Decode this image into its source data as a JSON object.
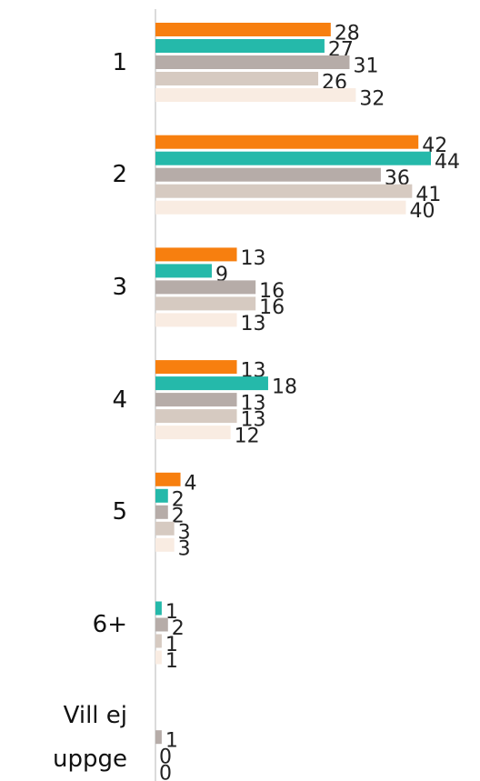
{
  "chart_data": {
    "type": "bar",
    "orientation": "horizontal",
    "categories": [
      "1",
      "2",
      "3",
      "4",
      "5",
      "6+",
      "Vill ej uppge"
    ],
    "series": [
      {
        "color": "#f77f0f",
        "values": [
          28,
          42,
          13,
          13,
          4,
          null,
          null
        ]
      },
      {
        "color": "#25b9aa",
        "values": [
          27,
          44,
          9,
          18,
          2,
          1,
          null
        ]
      },
      {
        "color": "#b6aca8",
        "values": [
          31,
          36,
          16,
          13,
          2,
          2,
          1
        ]
      },
      {
        "color": "#d6cac1",
        "values": [
          26,
          41,
          16,
          13,
          3,
          1,
          0
        ]
      },
      {
        "color": "#f9ece2",
        "values": [
          32,
          40,
          13,
          12,
          3,
          1,
          0
        ]
      }
    ]
  }
}
